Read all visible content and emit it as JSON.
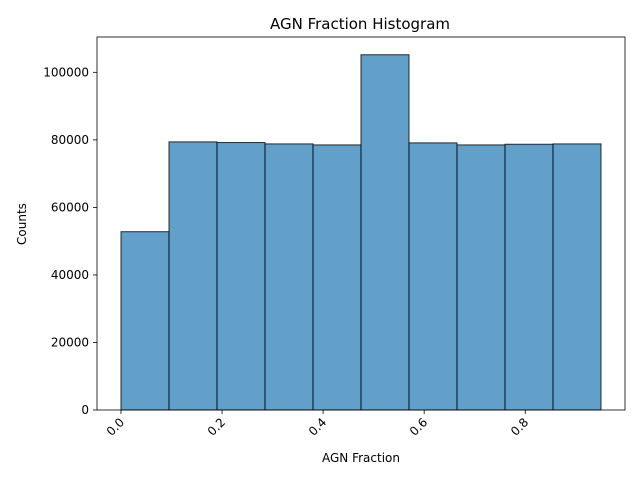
{
  "chart_data": {
    "type": "bar",
    "title": "AGN Fraction Histogram",
    "xlabel": "AGN Fraction",
    "ylabel": "Counts",
    "bin_edges": [
      0.0,
      0.095,
      0.19,
      0.285,
      0.38,
      0.475,
      0.57,
      0.665,
      0.76,
      0.855,
      0.95
    ],
    "counts": [
      52800,
      79400,
      79200,
      78800,
      78500,
      105200,
      79100,
      78500,
      78700,
      78800
    ],
    "xlim": [
      -0.0475,
      0.9975
    ],
    "ylim": [
      0,
      110460
    ],
    "xticks": [
      0.0,
      0.2,
      0.4,
      0.6,
      0.8
    ],
    "xtick_labels": [
      "0.0",
      "0.2",
      "0.4",
      "0.6",
      "0.8"
    ],
    "yticks": [
      0,
      20000,
      40000,
      60000,
      80000,
      100000
    ],
    "ytick_labels": [
      "0",
      "20000",
      "40000",
      "60000",
      "80000",
      "100000"
    ],
    "bar_color": "#1f77b4",
    "bar_edge_color": "#000000",
    "bar_alpha": 0.7,
    "grid": false,
    "legend": "none"
  }
}
